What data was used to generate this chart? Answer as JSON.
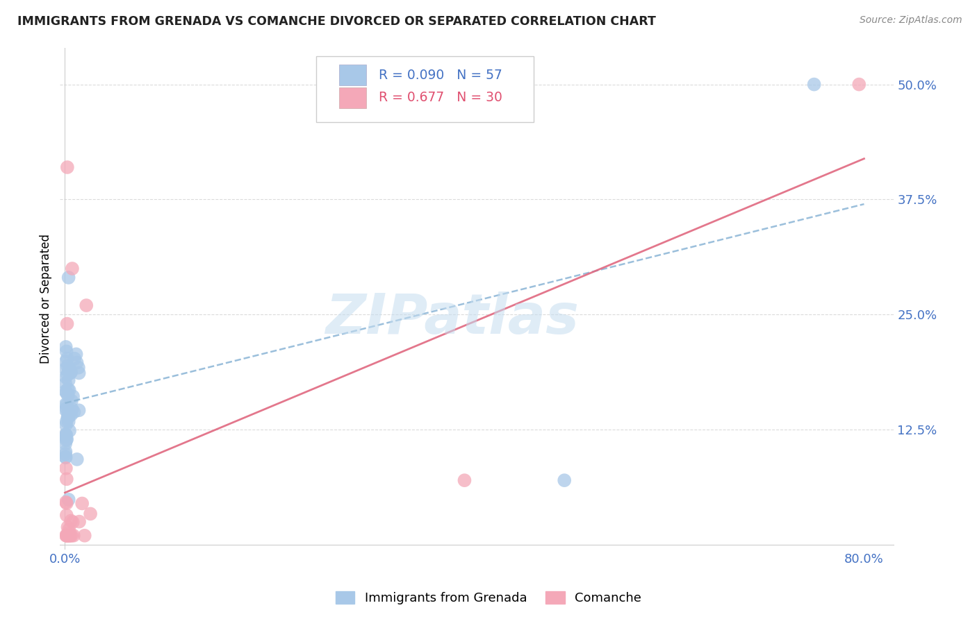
{
  "title": "IMMIGRANTS FROM GRENADA VS COMANCHE DIVORCED OR SEPARATED CORRELATION CHART",
  "source": "Source: ZipAtlas.com",
  "ylabel_label": "Divorced or Separated",
  "ytick_vals": [
    0.125,
    0.25,
    0.375,
    0.5
  ],
  "ytick_labels": [
    "12.5%",
    "25.0%",
    "37.5%",
    "50.0%"
  ],
  "xtick_vals": [
    0.0,
    0.2,
    0.4,
    0.6,
    0.8
  ],
  "xtick_labels": [
    "0.0%",
    "",
    "",
    "",
    "80.0%"
  ],
  "xlim": [
    -0.005,
    0.83
  ],
  "ylim": [
    -0.005,
    0.54
  ],
  "grenada_R": 0.09,
  "grenada_N": 57,
  "comanche_R": 0.677,
  "comanche_N": 30,
  "grenada_color": "#a8c8e8",
  "comanche_color": "#f4a8b8",
  "grenada_line_color": "#90b8d8",
  "comanche_line_color": "#e06880",
  "watermark": "ZIPatlas",
  "legend_text_color_grenada": "#4472c4",
  "legend_text_color_comanche": "#e05070",
  "axis_color": "#4472c4",
  "title_color": "#222222",
  "source_color": "#888888",
  "grid_color": "#d8d8d8",
  "spine_color": "#cccccc",
  "grenada_line_intercept": 0.155,
  "grenada_line_slope": 0.095,
  "comanche_line_intercept": 0.005,
  "comanche_line_slope": 0.615
}
